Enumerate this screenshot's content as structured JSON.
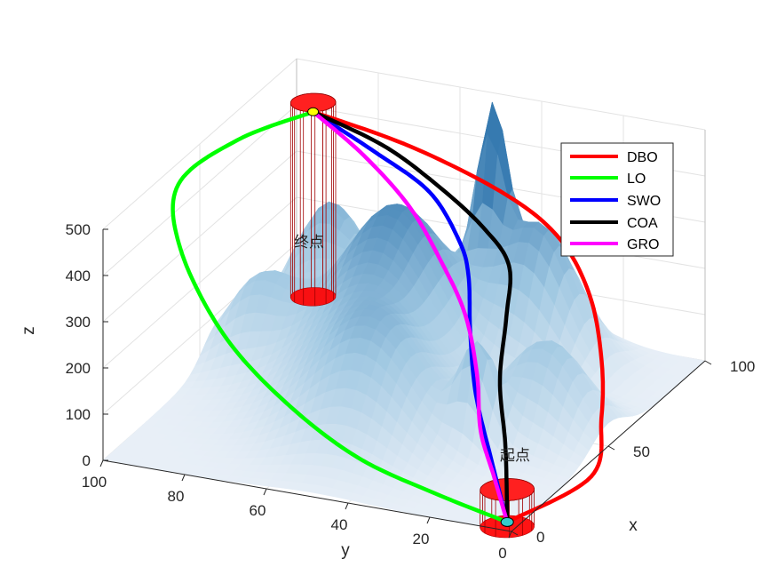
{
  "chart_data": {
    "type": "3d-surface-with-paths",
    "axes": {
      "x": {
        "label": "x",
        "ticks": [
          "0",
          "50",
          "100"
        ],
        "range": [
          0,
          100
        ]
      },
      "y": {
        "label": "y",
        "ticks": [
          "0",
          "20",
          "40",
          "60",
          "80",
          "100"
        ],
        "range": [
          0,
          100
        ]
      },
      "z": {
        "label": "z",
        "ticks": [
          "0",
          "100",
          "200",
          "300",
          "400",
          "500"
        ],
        "range": [
          0,
          500
        ]
      }
    },
    "grid": true,
    "legend": {
      "placement": "upper-right",
      "entries": [
        {
          "name": "DBO",
          "color": "#ff0000"
        },
        {
          "name": "LO",
          "color": "#00ff00"
        },
        {
          "name": "SWO",
          "color": "#0000ff"
        },
        {
          "name": "COA",
          "color": "#000000"
        },
        {
          "name": "GRO",
          "color": "#ff00ff"
        }
      ]
    },
    "markers": {
      "start": {
        "label": "起点",
        "x": 2,
        "y": 2,
        "z": 10,
        "color": "#33cccc"
      },
      "end": {
        "label": "终点",
        "x": 98,
        "y": 95,
        "z": 400,
        "color": "#ffff00"
      }
    },
    "surface_peaks": [
      {
        "x": 50,
        "y": 60,
        "h": 180,
        "s": 15
      },
      {
        "x": 30,
        "y": 48,
        "h": 200,
        "s": 12
      },
      {
        "x": 85,
        "y": 45,
        "h": 380,
        "s": 3.5
      },
      {
        "x": 82,
        "y": 32,
        "h": 300,
        "s": 9
      },
      {
        "x": 70,
        "y": 60,
        "h": 280,
        "s": 12
      },
      {
        "x": 35,
        "y": 25,
        "h": 180,
        "s": 4
      },
      {
        "x": 50,
        "y": 15,
        "h": 200,
        "s": 9
      },
      {
        "x": 85,
        "y": 85,
        "h": 250,
        "s": 8
      },
      {
        "x": 60,
        "y": 90,
        "h": 170,
        "s": 8
      }
    ],
    "obstacles": [
      {
        "x": 2,
        "y": 2,
        "r": 6,
        "h": 80
      },
      {
        "x": 98,
        "y": 95,
        "r": 5,
        "h": 420
      }
    ],
    "series": [
      {
        "name": "DBO",
        "color": "#ff0000",
        "points": [
          [
            2,
            2,
            10
          ],
          [
            20,
            -10,
            60
          ],
          [
            38,
            -4,
            110
          ],
          [
            55,
            4,
            160
          ],
          [
            70,
            14,
            230
          ],
          [
            84,
            28,
            280
          ],
          [
            92,
            45,
            320
          ],
          [
            96,
            70,
            370
          ],
          [
            98,
            95,
            400
          ]
        ]
      },
      {
        "name": "LO",
        "color": "#00ff00",
        "points": [
          [
            2,
            2,
            10
          ],
          [
            3,
            20,
            40
          ],
          [
            5,
            40,
            80
          ],
          [
            10,
            60,
            150
          ],
          [
            20,
            80,
            230
          ],
          [
            40,
            100,
            310
          ],
          [
            60,
            110,
            360
          ],
          [
            80,
            105,
            390
          ],
          [
            98,
            95,
            400
          ]
        ]
      },
      {
        "name": "SWO",
        "color": "#0000ff",
        "points": [
          [
            2,
            2,
            10
          ],
          [
            15,
            12,
            80
          ],
          [
            28,
            22,
            160
          ],
          [
            42,
            30,
            230
          ],
          [
            58,
            38,
            280
          ],
          [
            70,
            46,
            300
          ],
          [
            80,
            58,
            350
          ],
          [
            88,
            75,
            380
          ],
          [
            98,
            95,
            400
          ]
        ]
      },
      {
        "name": "COA",
        "color": "#000000",
        "points": [
          [
            2,
            2,
            10
          ],
          [
            18,
            10,
            100
          ],
          [
            32,
            18,
            180
          ],
          [
            48,
            24,
            250
          ],
          [
            62,
            30,
            300
          ],
          [
            74,
            42,
            320
          ],
          [
            84,
            58,
            350
          ],
          [
            92,
            75,
            380
          ],
          [
            98,
            95,
            400
          ]
        ]
      },
      {
        "name": "GRO",
        "color": "#ff00ff",
        "points": [
          [
            2,
            2,
            10
          ],
          [
            12,
            10,
            60
          ],
          [
            22,
            18,
            110
          ],
          [
            35,
            25,
            170
          ],
          [
            50,
            35,
            230
          ],
          [
            65,
            48,
            270
          ],
          [
            78,
            62,
            320
          ],
          [
            88,
            78,
            370
          ],
          [
            98,
            95,
            400
          ]
        ]
      }
    ]
  }
}
